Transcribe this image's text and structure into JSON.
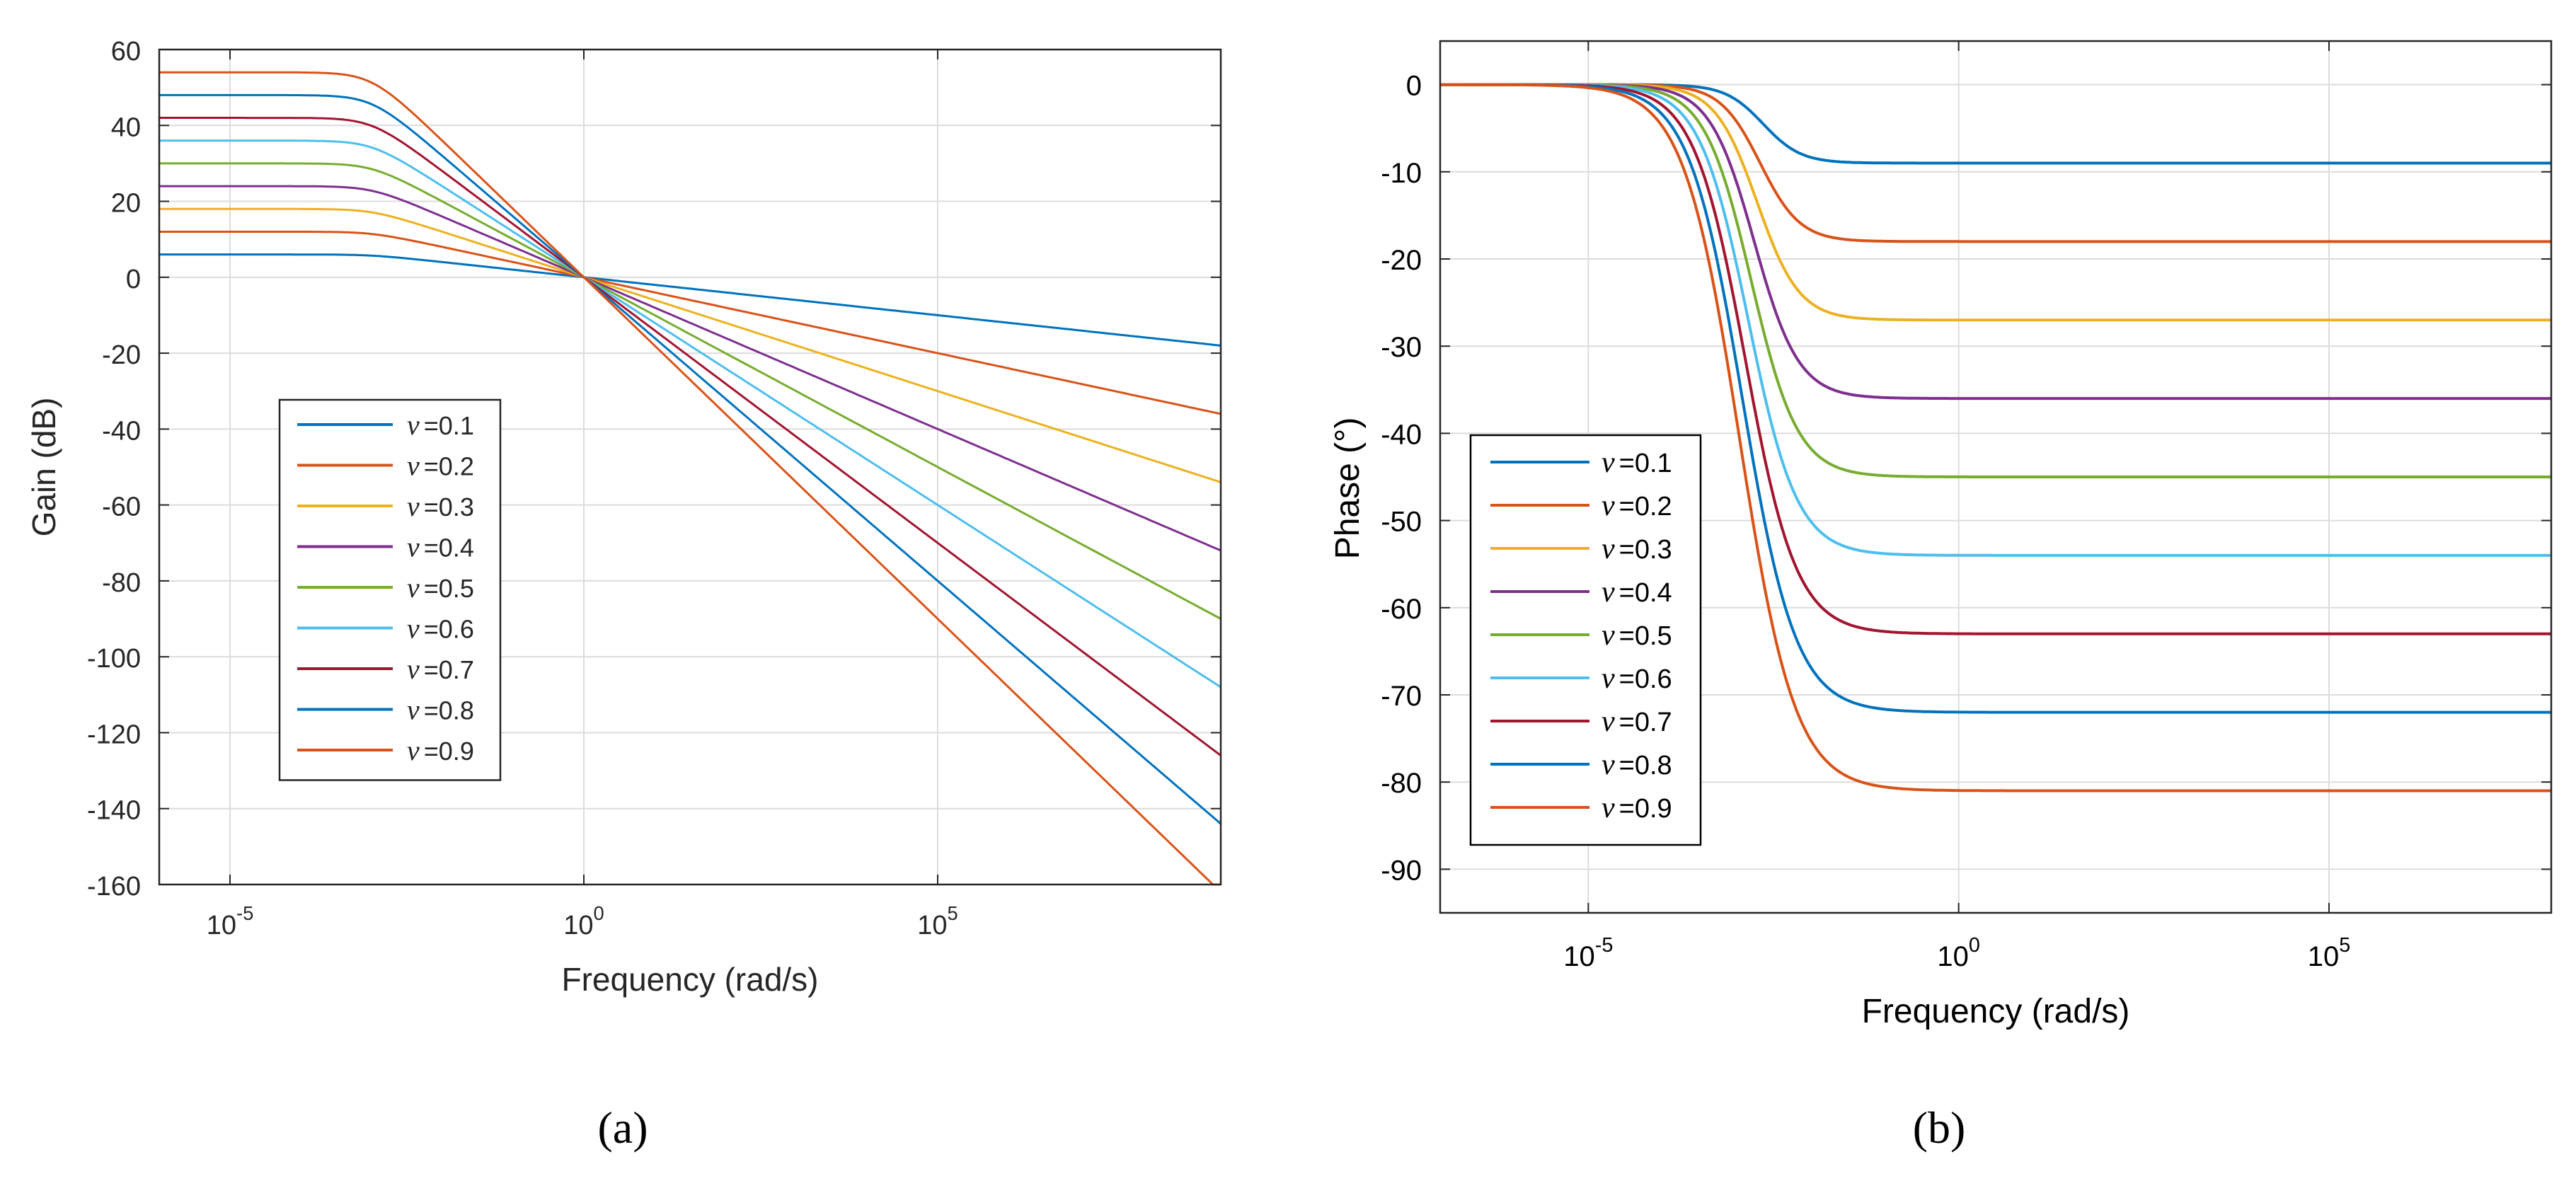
{
  "chart_data": [
    {
      "type": "line",
      "panel_label": "(a)",
      "xlabel": "Frequency (rad/s)",
      "ylabel": "Gain (dB)",
      "xscale": "log",
      "xlim_exp": [
        -6,
        9
      ],
      "ylim": [
        -160,
        60
      ],
      "yticks": [
        "-160",
        "-140",
        "-120",
        "-100",
        "-80",
        "-60",
        "-40",
        "-20",
        "0",
        "20",
        "40",
        "60"
      ],
      "xticks": [
        {
          "base": "10",
          "exp": "-5"
        },
        {
          "base": "10",
          "exp": "0"
        },
        {
          "base": "10",
          "exp": "5"
        }
      ],
      "grid": true,
      "legend_position": "center-left",
      "corner_low_exp": -3,
      "corner_high_exp": 3,
      "series": [
        {
          "name": "ν =0.1",
          "nu_symbol": "ν",
          "nu_value": "=0.1",
          "nu": 0.1,
          "color": "#0072BD"
        },
        {
          "name": "ν =0.2",
          "nu_symbol": "ν",
          "nu_value": "=0.2",
          "nu": 0.2,
          "color": "#D95319"
        },
        {
          "name": "ν =0.3",
          "nu_symbol": "ν",
          "nu_value": "=0.3",
          "nu": 0.3,
          "color": "#EDB120"
        },
        {
          "name": "ν =0.4",
          "nu_symbol": "ν",
          "nu_value": "=0.4",
          "nu": 0.4,
          "color": "#7E2F8E"
        },
        {
          "name": "ν =0.5",
          "nu_symbol": "ν",
          "nu_value": "=0.5",
          "nu": 0.5,
          "color": "#77AC30"
        },
        {
          "name": "ν =0.6",
          "nu_symbol": "ν",
          "nu_value": "=0.6",
          "nu": 0.6,
          "color": "#4DBEEE"
        },
        {
          "name": "ν =0.7",
          "nu_symbol": "ν",
          "nu_value": "=0.7",
          "nu": 0.7,
          "color": "#A2142F"
        },
        {
          "name": "ν =0.8",
          "nu_symbol": "ν",
          "nu_value": "=0.8",
          "nu": 0.8,
          "color": "#0072BD"
        },
        {
          "name": "ν =0.9",
          "nu_symbol": "ν",
          "nu_value": "=0.9",
          "nu": 0.9,
          "color": "#D95319"
        }
      ]
    },
    {
      "type": "line",
      "panel_label": "(b)",
      "xlabel": "Frequency (rad/s)",
      "ylabel": "Phase (°)",
      "xscale": "log",
      "xlim_exp": [
        -7,
        8
      ],
      "ylim": [
        -95,
        5
      ],
      "yticks": [
        "-90",
        "-80",
        "-70",
        "-60",
        "-50",
        "-40",
        "-30",
        "-20",
        "-10",
        "0"
      ],
      "xticks": [
        {
          "base": "10",
          "exp": "-5"
        },
        {
          "base": "10",
          "exp": "0"
        },
        {
          "base": "10",
          "exp": "5"
        }
      ],
      "grid": true,
      "legend_position": "bottom-left",
      "transition_center_exp": -3,
      "series": [
        {
          "name": "ν =0.1",
          "nu_symbol": "ν",
          "nu_value": "=0.1",
          "nu": 0.1,
          "final_phase": -9,
          "color": "#0072BD"
        },
        {
          "name": "ν =0.2",
          "nu_symbol": "ν",
          "nu_value": "=0.2",
          "nu": 0.2,
          "final_phase": -18,
          "color": "#D95319"
        },
        {
          "name": "ν =0.3",
          "nu_symbol": "ν",
          "nu_value": "=0.3",
          "nu": 0.3,
          "final_phase": -27,
          "color": "#EDB120"
        },
        {
          "name": "ν =0.4",
          "nu_symbol": "ν",
          "nu_value": "=0.4",
          "nu": 0.4,
          "final_phase": -36,
          "color": "#7E2F8E"
        },
        {
          "name": "ν =0.5",
          "nu_symbol": "ν",
          "nu_value": "=0.5",
          "nu": 0.5,
          "final_phase": -45,
          "color": "#77AC30"
        },
        {
          "name": "ν =0.6",
          "nu_symbol": "ν",
          "nu_value": "=0.6",
          "nu": 0.6,
          "final_phase": -54,
          "color": "#4DBEEE"
        },
        {
          "name": "ν =0.7",
          "nu_symbol": "ν",
          "nu_value": "=0.7",
          "nu": 0.7,
          "final_phase": -63,
          "color": "#A2142F"
        },
        {
          "name": "ν =0.8",
          "nu_symbol": "ν",
          "nu_value": "=0.8",
          "nu": 0.8,
          "final_phase": -72,
          "color": "#0072BD"
        },
        {
          "name": "ν =0.9",
          "nu_symbol": "ν",
          "nu_value": "=0.9",
          "nu": 0.9,
          "final_phase": -81,
          "color": "#D95319"
        }
      ]
    }
  ]
}
